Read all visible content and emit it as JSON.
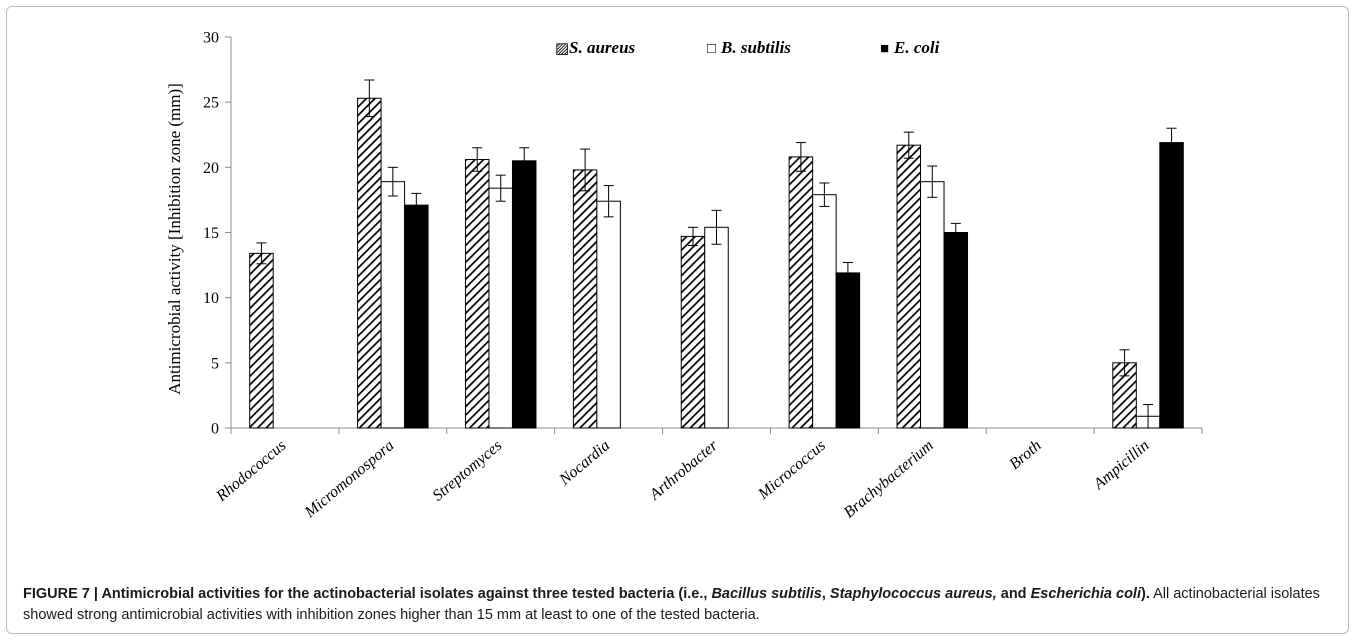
{
  "chart_data": {
    "type": "bar",
    "title": "",
    "xlabel": "",
    "ylabel": "Antimicrobial activity [Inhibition zone (mm)]",
    "ylim": [
      0,
      30
    ],
    "yticks": [
      0,
      5,
      10,
      15,
      20,
      25,
      30
    ],
    "grid": false,
    "legend_position": "top",
    "categories": [
      "Rhodococcus",
      "Micromonospora",
      "Streptomyces",
      "Nocardia",
      "Arthrobacter",
      "Micrococcus",
      "Brachybacterium",
      "Broth",
      "Ampicillin"
    ],
    "series": [
      {
        "name": "S. aureus",
        "fill": "hatch",
        "values": [
          13.4,
          25.3,
          20.6,
          19.8,
          14.7,
          20.8,
          21.7,
          0,
          5.0
        ],
        "errors": [
          0.8,
          1.4,
          0.9,
          1.6,
          0.7,
          1.1,
          1.0,
          0,
          1.0
        ]
      },
      {
        "name": "B. subtilis",
        "fill": "#ffffff",
        "values": [
          0,
          18.9,
          18.4,
          17.4,
          15.4,
          17.9,
          18.9,
          0,
          0.9
        ],
        "errors": [
          0,
          1.1,
          1.0,
          1.2,
          1.3,
          0.9,
          1.2,
          0,
          0.9
        ]
      },
      {
        "name": "E. coli",
        "fill": "#000000",
        "values": [
          0,
          17.1,
          20.5,
          0,
          0,
          11.9,
          15.0,
          0,
          21.9
        ],
        "errors": [
          0,
          0.9,
          1.0,
          0,
          0,
          0.8,
          0.7,
          0,
          1.1
        ]
      }
    ],
    "legend_markers": {
      "S. aureus": "▨",
      "B. subtilis": "□",
      "E. coli": "■"
    }
  },
  "caption": {
    "label": "FIGURE 7 | ",
    "title_a": "Antimicrobial activities for the actinobacterial isolates against three tested bacteria (i.e., ",
    "title_b": "Bacillus subtilis",
    "title_c": ", ",
    "title_d": "Staphylococcus aureus,",
    "title_e": " and ",
    "title_f": "Escherichia coli",
    "title_g": ").",
    "body": " All actinobacterial isolates showed strong antimicrobial activities with inhibition zones higher than 15 mm at least to one of the tested bacteria."
  }
}
